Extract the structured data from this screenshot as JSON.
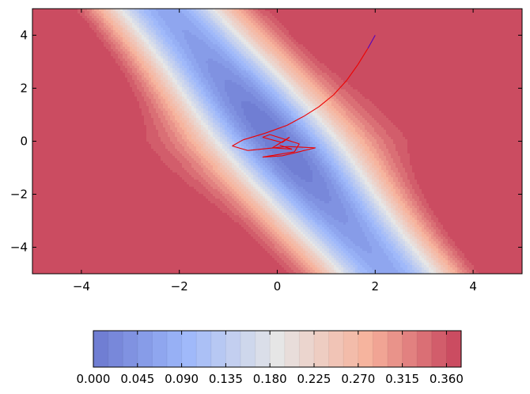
{
  "chart_data": {
    "type": "contour",
    "title": "",
    "xlabel": "",
    "ylabel": "",
    "xlim": [
      -5,
      5
    ],
    "ylim": [
      -5,
      5
    ],
    "x_ticks": [
      "−4",
      "−2",
      "0",
      "2",
      "4"
    ],
    "y_ticks": [
      "4",
      "2",
      "0",
      "−2",
      "−4"
    ],
    "x_tick_values": [
      -4,
      -2,
      0,
      2,
      4
    ],
    "y_tick_values": [
      4,
      2,
      0,
      -2,
      -4
    ],
    "colormap": "coolwarm",
    "colorbar": {
      "orientation": "horizontal",
      "range": [
        0.0,
        0.375
      ],
      "levels_step": 0.015,
      "tick_values": [
        0.0,
        0.045,
        0.09,
        0.135,
        0.18,
        0.225,
        0.27,
        0.315,
        0.36
      ],
      "tick_labels": [
        "0.000",
        "0.045",
        "0.090",
        "0.135",
        "0.180",
        "0.225",
        "0.270",
        "0.315",
        "0.360"
      ]
    },
    "trajectory": {
      "color": "#ee0000",
      "start_color": "#5500bb",
      "points": [
        [
          2.0,
          4.0
        ],
        [
          1.85,
          3.5
        ],
        [
          1.65,
          2.9
        ],
        [
          1.42,
          2.3
        ],
        [
          1.15,
          1.75
        ],
        [
          0.85,
          1.3
        ],
        [
          0.55,
          0.95
        ],
        [
          0.2,
          0.6
        ],
        [
          -0.25,
          0.3
        ],
        [
          -0.7,
          0.05
        ],
        [
          -0.92,
          -0.18
        ],
        [
          -0.6,
          -0.35
        ],
        [
          0.2,
          -0.2
        ],
        [
          0.78,
          -0.25
        ],
        [
          0.1,
          -0.55
        ],
        [
          -0.3,
          -0.6
        ],
        [
          0.35,
          -0.4
        ],
        [
          0.45,
          -0.1
        ],
        [
          -0.15,
          0.25
        ],
        [
          -0.3,
          0.15
        ],
        [
          0.1,
          -0.05
        ],
        [
          0.25,
          0.15
        ],
        [
          -0.1,
          -0.25
        ],
        [
          0.3,
          -0.3
        ],
        [
          0.05,
          -0.15
        ]
      ]
    }
  },
  "colors": {
    "low": "#3b4cc0",
    "mid": "#dddddd",
    "high": "#b40426",
    "contour_alpha": 0.75
  }
}
